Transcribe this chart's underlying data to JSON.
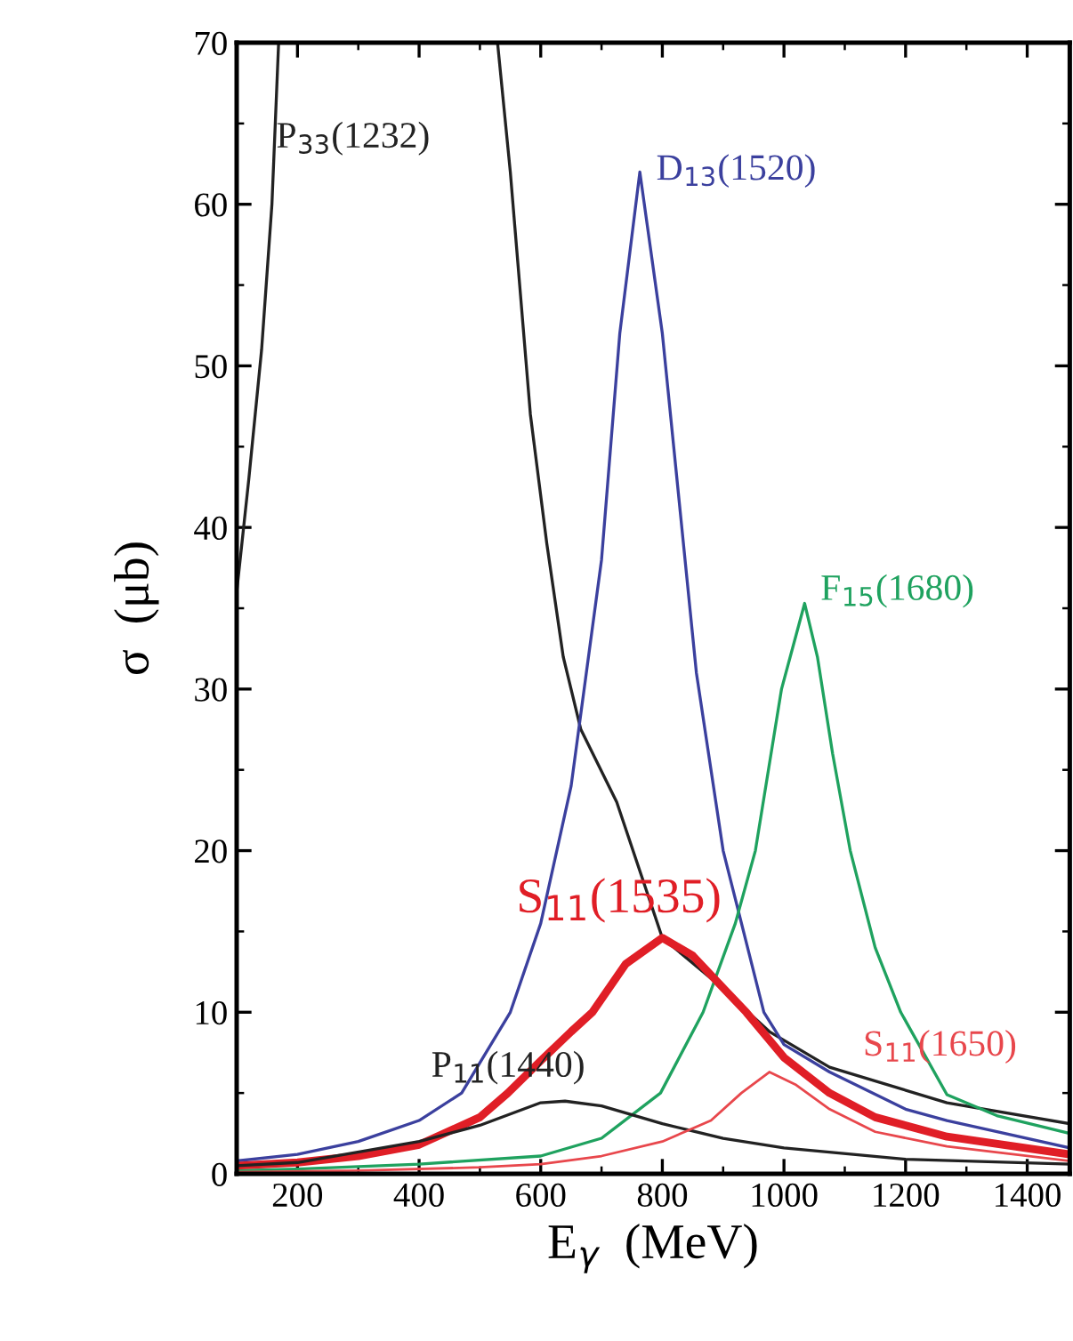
{
  "chart_data": {
    "type": "line",
    "xlabel": "E$_{γ}$  (MeV)",
    "ylabel": "σ  (μb)",
    "xlim": [
      100,
      1470
    ],
    "ylim": [
      0,
      70
    ],
    "xticks": [
      200,
      400,
      600,
      800,
      1000,
      1200,
      1400
    ],
    "yticks": [
      0,
      10,
      20,
      30,
      40,
      50,
      60,
      70
    ],
    "grid": false,
    "legend": false,
    "marker": "none",
    "line_style": "solid",
    "series": [
      {
        "name": "P$_{33}$(1232)",
        "color": "#222222",
        "x": [
          100,
          120,
          141,
          158,
          169,
          340,
          529,
          550,
          583,
          610,
          637,
          666,
          725,
          800,
          880,
          976,
          1075,
          1268,
          1470
        ],
        "values": [
          36,
          43,
          51,
          60,
          70,
          null,
          70,
          62,
          47,
          39,
          32,
          27.5,
          23,
          14.6,
          12.1,
          8.8,
          6.6,
          4.4,
          3.1
        ]
      },
      {
        "name": "D$_{13}$(1520)",
        "color": "#3b409e",
        "x": [
          100,
          200,
          300,
          400,
          470,
          550,
          600,
          650,
          700,
          730,
          763,
          800,
          856,
          900,
          967,
          1000,
          1075,
          1200,
          1268,
          1470
        ],
        "values": [
          0.8,
          1.2,
          2,
          3.3,
          5,
          10,
          15.5,
          24,
          38,
          52,
          62,
          52,
          31,
          20,
          10,
          8,
          6.3,
          4,
          3.3,
          1.6
        ]
      },
      {
        "name": "F$_{15}$(1680)",
        "color": "#1fa25f",
        "x": [
          100,
          200,
          400,
          600,
          700,
          797,
          867,
          920,
          953,
          996,
          1034,
          1055,
          1080,
          1109,
          1150,
          1192,
          1268,
          1350,
          1470
        ],
        "values": [
          0.2,
          0.3,
          0.6,
          1.1,
          2.2,
          5,
          10,
          15.5,
          20,
          30,
          35.3,
          32,
          26,
          20,
          14,
          10,
          4.9,
          3.6,
          2.5
        ]
      },
      {
        "name": "S$_{11}$(1535)",
        "color": "#e01e26",
        "x": [
          100,
          200,
          300,
          400,
          500,
          546,
          600,
          650,
          685,
          740,
          800,
          850,
          900,
          938,
          1000,
          1075,
          1150,
          1268,
          1470
        ],
        "values": [
          0.5,
          0.7,
          1.1,
          1.8,
          3.5,
          5,
          7,
          8.8,
          10,
          13,
          14.6,
          13.5,
          11.5,
          10,
          7.2,
          5,
          3.5,
          2.3,
          1.2
        ]
      },
      {
        "name": "P$_{11}$(1440)",
        "color": "#222222",
        "x": [
          100,
          200,
          400,
          500,
          600,
          640,
          700,
          800,
          900,
          1000,
          1200,
          1470
        ],
        "values": [
          0.5,
          0.7,
          2,
          3,
          4.4,
          4.5,
          4.2,
          3.1,
          2.2,
          1.6,
          0.9,
          0.6
        ]
      },
      {
        "name": "S$_{11}$(1650)",
        "color": "#e8474c",
        "x": [
          100,
          300,
          500,
          600,
          700,
          800,
          880,
          930,
          976,
          1020,
          1075,
          1150,
          1268,
          1470
        ],
        "values": [
          0.1,
          0.2,
          0.4,
          0.6,
          1.1,
          2,
          3.3,
          5,
          6.3,
          5.5,
          4,
          2.6,
          1.7,
          0.8
        ]
      }
    ]
  }
}
